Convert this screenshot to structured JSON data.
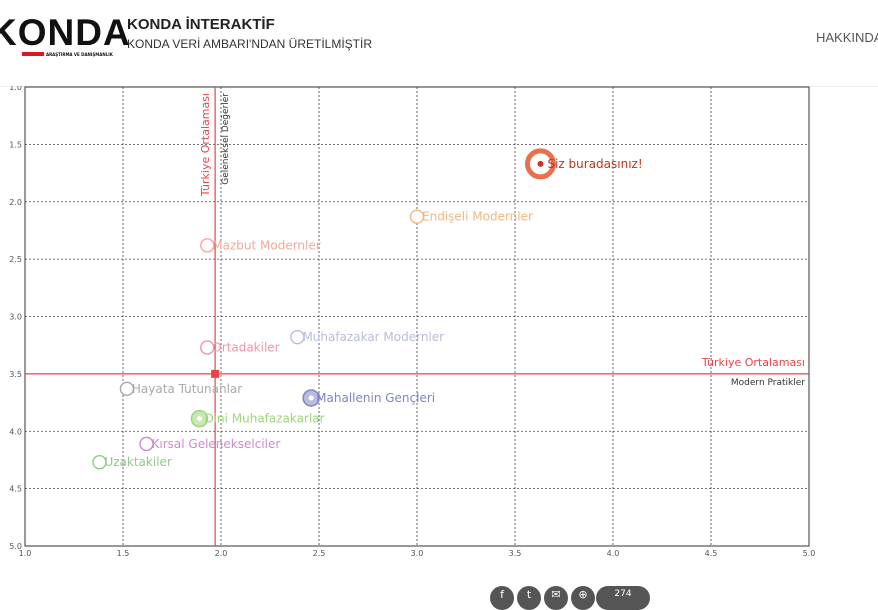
{
  "header": {
    "logo_text": "KONDA",
    "logo_sub": "ARAŞTIRMA VE DANIŞMANLIK",
    "title": "KONDA İNTERAKTİF",
    "subtitle": "KONDA VERİ AMBARI'NDAN ÜRETİLMİŞTİR",
    "nav_label": "HAKKINDA"
  },
  "chart_data": {
    "type": "scatter",
    "xlim": [
      1.0,
      5.0
    ],
    "ylim": [
      1.0,
      5.0
    ],
    "y_inverted": true,
    "grid": true,
    "x_ticks": [
      "1.0",
      "1.5",
      "2.0",
      "2.5",
      "3.0",
      "3.5",
      "4.0",
      "4.5",
      "5.0"
    ],
    "y_ticks": [
      "1.0",
      "1.5",
      "2.0",
      "2.5",
      "3.0",
      "3.5",
      "4.0",
      "4.5",
      "5.0"
    ],
    "reference_lines": {
      "vertical": {
        "x": 1.97,
        "label": "Türkiye Ortalaması",
        "sublabel": "Geleneksel Değerler"
      },
      "horizontal": {
        "y": 3.5,
        "label": "Türkiye Ortalaması",
        "sublabel": "Modern Pratikler"
      },
      "color": "#e8454a"
    },
    "points": [
      {
        "x": 3.63,
        "y": 1.67,
        "label": "Siz buradasınız!",
        "color": "#e8704f",
        "highlight": true
      },
      {
        "x": 3.0,
        "y": 2.13,
        "label": "Endişeli Modernler",
        "color": "#f6b67c"
      },
      {
        "x": 1.93,
        "y": 2.38,
        "label": "Mazbut Modernler",
        "color": "#f3a99b"
      },
      {
        "x": 2.39,
        "y": 3.18,
        "label": "Muhafazakar Modernler",
        "color": "#b9bdd7"
      },
      {
        "x": 1.93,
        "y": 3.27,
        "label": "Ortadakiler",
        "color": "#ef94a6"
      },
      {
        "x": 1.52,
        "y": 3.63,
        "label": "Hayata Tutunanlar",
        "color": "#aaaaaa"
      },
      {
        "x": 2.46,
        "y": 3.71,
        "label": "Mahallenin Gençleri",
        "color": "#7f86c1",
        "filled": true
      },
      {
        "x": 1.89,
        "y": 3.89,
        "label": "Dini Muhafazakarlar",
        "color": "#9bd67a",
        "filled": true
      },
      {
        "x": 1.62,
        "y": 4.11,
        "label": "Kırsal Gelenekselciler",
        "color": "#cc8ad0"
      },
      {
        "x": 1.38,
        "y": 4.27,
        "label": "Uzaktakiler",
        "color": "#8fca8a"
      }
    ],
    "average_marker": {
      "x": 1.97,
      "y": 3.5,
      "color": "#e8454a"
    }
  },
  "share": {
    "icons": [
      "facebook-icon",
      "twitter-icon",
      "email-icon",
      "link-icon"
    ],
    "glyphs": [
      "f",
      "t",
      "✉",
      "⊕"
    ],
    "count": "274"
  }
}
